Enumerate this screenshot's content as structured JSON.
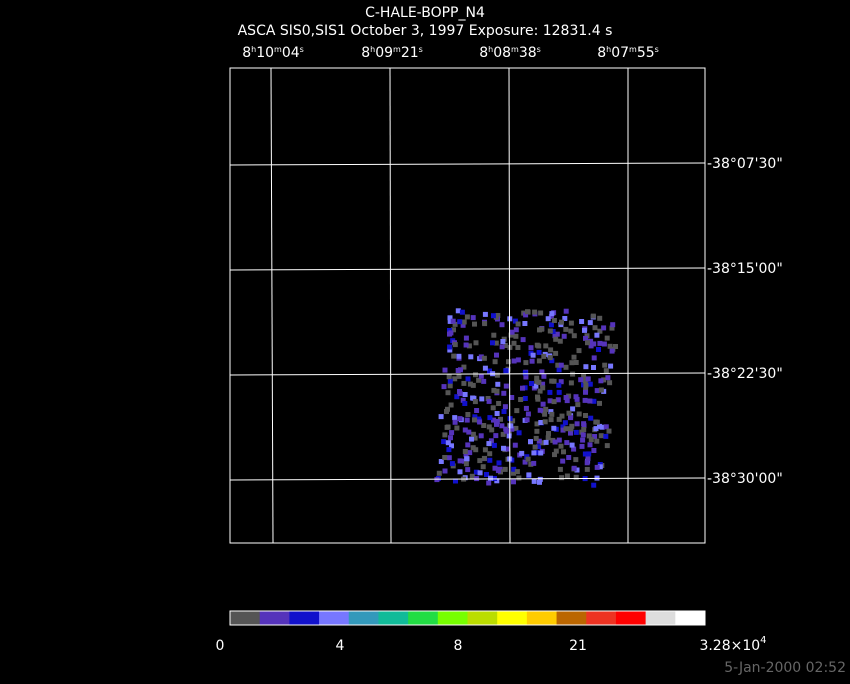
{
  "title": "C-HALE-BOPP_N4",
  "subtitle": "ASCA SIS0,SIS1 October 3, 1997 Exposure: 12831.4 s",
  "ra_labels": [
    [
      "8",
      "h",
      "10",
      "m",
      "04",
      "s"
    ],
    [
      "8",
      "h",
      "09",
      "m",
      "21",
      "s"
    ],
    [
      "8",
      "h",
      "08",
      "m",
      "38",
      "s"
    ],
    [
      "8",
      "h",
      "07",
      "m",
      "55",
      "s"
    ]
  ],
  "dec_labels": [
    "-38°07'30\"",
    "-38°15'00\"",
    "-38°22'30\"",
    "-38°30'00\""
  ],
  "colorbar": {
    "colors": [
      "#555555",
      "#5533bb",
      "#1111cc",
      "#7777ff",
      "#3399bb",
      "#11bb99",
      "#22dd44",
      "#77ff00",
      "#bbdd00",
      "#ffff00",
      "#ffcc00",
      "#bb6600",
      "#ee3322",
      "#ff0000",
      "#dddddd",
      "#ffffff"
    ],
    "labels": [
      [
        "0"
      ],
      [
        "4"
      ],
      [
        "8"
      ],
      [
        "21"
      ],
      [
        "3.28×10",
        "4"
      ]
    ]
  },
  "timestamp": "5-Jan-2000 02:52"
}
